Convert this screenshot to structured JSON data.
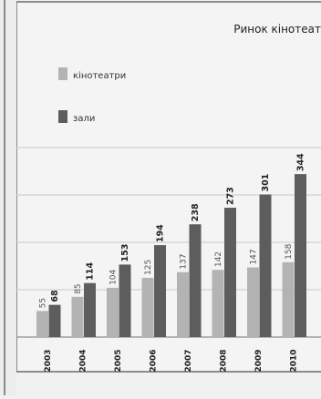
{
  "chart_data": {
    "type": "bar",
    "title": "Ринок кінотеат",
    "categories": [
      "2003",
      "2004",
      "2005",
      "2006",
      "2007",
      "2008",
      "2009",
      "2010"
    ],
    "series": [
      {
        "name": "кінотеатри",
        "values": [
          55,
          85,
          104,
          125,
          137,
          142,
          147,
          158
        ],
        "color": "#b3b3b3"
      },
      {
        "name": "зали",
        "values": [
          68,
          114,
          153,
          194,
          238,
          273,
          301,
          344
        ],
        "color": "#5d5d5d"
      }
    ],
    "ylim": [
      0,
      400
    ],
    "grid": true,
    "legend": "top-left"
  }
}
